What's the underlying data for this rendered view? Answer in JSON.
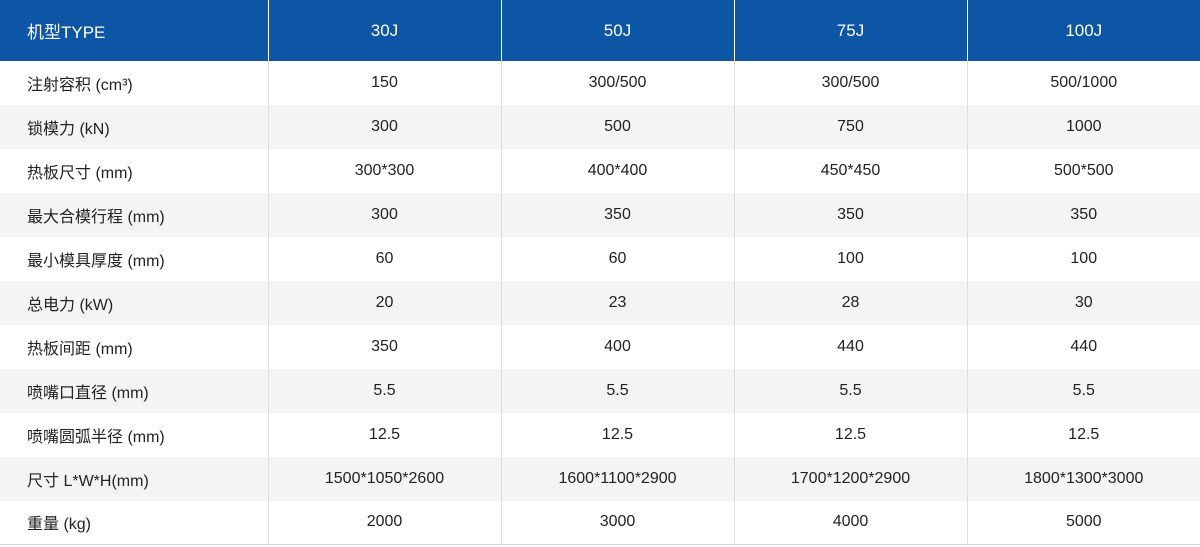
{
  "header": {
    "label": "机型TYPE",
    "models": [
      "30J",
      "50J",
      "75J",
      "100J"
    ]
  },
  "rows": [
    {
      "label": "注射容积 (cm³)",
      "values": [
        "150",
        "300/500",
        "300/500",
        "500/1000"
      ]
    },
    {
      "label": "锁模力 (kN)",
      "values": [
        "300",
        "500",
        "750",
        "1000"
      ]
    },
    {
      "label": "热板尺寸 (mm)",
      "values": [
        "300*300",
        "400*400",
        "450*450",
        "500*500"
      ]
    },
    {
      "label": "最大合模行程 (mm)",
      "values": [
        "300",
        "350",
        "350",
        "350"
      ]
    },
    {
      "label": "最小模具厚度 (mm)",
      "values": [
        "60",
        "60",
        "100",
        "100"
      ]
    },
    {
      "label": "总电力 (kW)",
      "values": [
        "20",
        "23",
        "28",
        "30"
      ]
    },
    {
      "label": "热板间距 (mm)",
      "values": [
        "350",
        "400",
        "440",
        "440"
      ]
    },
    {
      "label": "喷嘴口直径 (mm)",
      "values": [
        "5.5",
        "5.5",
        "5.5",
        "5.5"
      ]
    },
    {
      "label": "喷嘴圆弧半径 (mm)",
      "values": [
        "12.5",
        "12.5",
        "12.5",
        "12.5"
      ]
    },
    {
      "label": "尺寸 L*W*H(mm)",
      "values": [
        "1500*1050*2600",
        "1600*1100*2900",
        "1700*1200*2900",
        "1800*1300*3000"
      ]
    },
    {
      "label": "重量 (kg)",
      "values": [
        "2000",
        "3000",
        "4000",
        "5000"
      ]
    }
  ]
}
